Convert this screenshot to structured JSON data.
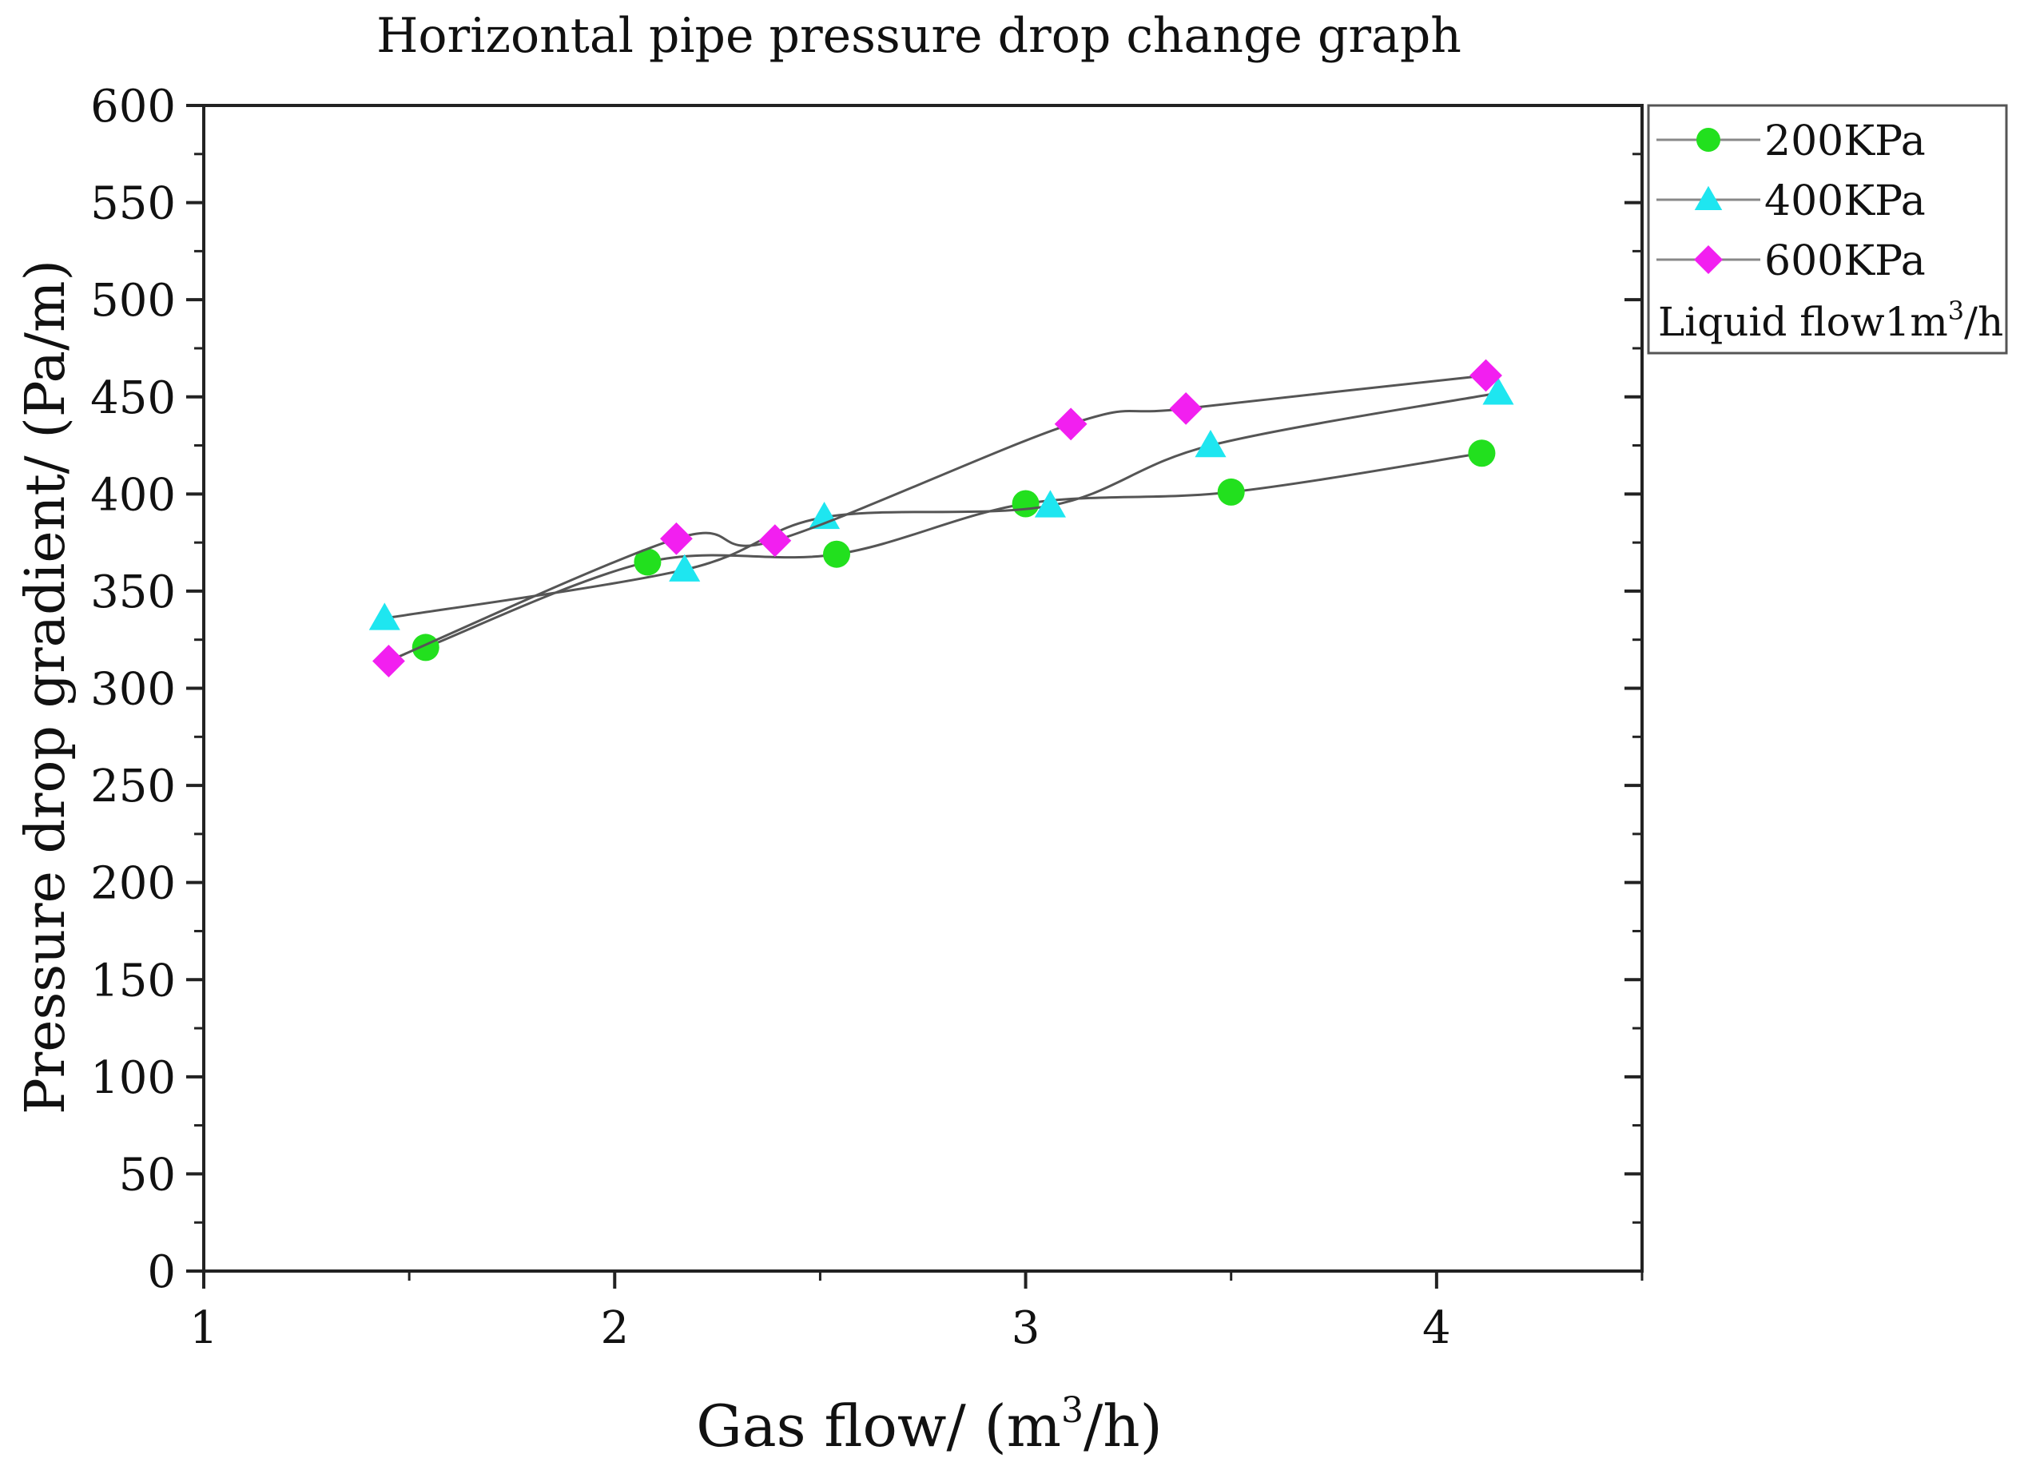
{
  "chart_data": {
    "type": "line",
    "title": "Horizontal pipe pressure drop change graph",
    "xlabel": {
      "main": "Gas flow/ (m",
      "sup": "3",
      "tail": "/h)"
    },
    "ylabel": "Pressure drop gradient/ (Pa/m)",
    "xlim": [
      1,
      4.5
    ],
    "ylim": [
      0,
      600
    ],
    "x_ticks": [
      1,
      2,
      3,
      4
    ],
    "y_ticks": [
      0,
      50,
      100,
      150,
      200,
      250,
      300,
      350,
      400,
      450,
      500,
      550,
      600
    ],
    "legend_position": "outside-top-right",
    "legend_note": {
      "main": "Liquid flow1m",
      "sup": "3",
      "tail": "/h"
    },
    "series": [
      {
        "name": "200KPa",
        "marker": "circle",
        "color": "#22e01e",
        "points": [
          [
            1.54,
            321
          ],
          [
            2.08,
            365
          ],
          [
            2.54,
            369
          ],
          [
            3.0,
            395
          ],
          [
            3.5,
            401
          ],
          [
            4.11,
            421
          ]
        ]
      },
      {
        "name": "400KPa",
        "marker": "triangle",
        "color": "#1ee6f0",
        "points": [
          [
            1.44,
            336
          ],
          [
            2.17,
            361
          ],
          [
            2.51,
            388
          ],
          [
            3.06,
            394
          ],
          [
            3.45,
            425
          ],
          [
            4.15,
            452
          ]
        ]
      },
      {
        "name": "600KPa",
        "marker": "diamond",
        "color": "#f21ff0",
        "points": [
          [
            1.45,
            314
          ],
          [
            2.15,
            377
          ],
          [
            2.39,
            376
          ],
          [
            3.11,
            436
          ],
          [
            3.39,
            444
          ],
          [
            4.12,
            461
          ]
        ]
      }
    ]
  }
}
